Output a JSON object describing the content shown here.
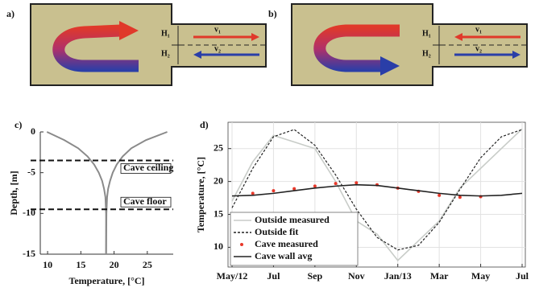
{
  "diagrams": [
    {
      "label": "a)",
      "h1": "H₁",
      "h2": "H₂",
      "v1": "v₁",
      "v2": "v₂"
    },
    {
      "label": "b)",
      "h1": "H₁",
      "h2": "H₂",
      "v1": "v₁",
      "v2": "v₂"
    }
  ],
  "chart_data": [
    {
      "type": "profile",
      "label": "c)",
      "xlabel": "Temperature, [°C]",
      "ylabel": "Depth, [m]",
      "xlim": [
        8.9,
        28.9
      ],
      "ylim": [
        -15,
        0
      ],
      "xticks": [
        10,
        15,
        20,
        25
      ],
      "yticks": [
        0,
        -5,
        -10,
        -15
      ],
      "y": [
        0,
        -1,
        -2,
        -3,
        -4,
        -5,
        -6,
        -7,
        -8,
        -10,
        -15
      ],
      "series": [
        {
          "color": "#8a8a8a",
          "x": [
            9.9,
            12.5,
            14.6,
            16.0,
            17.0,
            17.7,
            18.2,
            18.5,
            18.7,
            18.8,
            18.8
          ]
        },
        {
          "color": "#8a8a8a",
          "x": [
            28.0,
            24.8,
            22.6,
            21.3,
            20.4,
            19.8,
            19.4,
            19.1,
            18.95,
            18.85,
            18.8
          ]
        }
      ],
      "annotations": [
        {
          "text": "Cave ceiling",
          "y": -3.5
        },
        {
          "text": "Cave floor",
          "y": -9.5
        }
      ]
    },
    {
      "type": "line",
      "label": "d)",
      "ylabel": "Temperature, [°C]",
      "x": [
        "2012-05",
        "2012-06",
        "2012-07",
        "2012-08",
        "2012-09",
        "2012-10",
        "2012-11",
        "2012-12",
        "2013-01",
        "2013-02",
        "2013-03",
        "2013-04",
        "2013-05",
        "2013-06",
        "2013-07"
      ],
      "xlim": [
        "2012-05",
        "2013-07"
      ],
      "xticks": [
        {
          "value": "2012-05",
          "label": "May/12"
        },
        {
          "value": "2012-07",
          "label": "Jul"
        },
        {
          "value": "2012-09",
          "label": "Sep"
        },
        {
          "value": "2012-11",
          "label": "Nov"
        },
        {
          "value": "2013-01",
          "label": "Jan/13"
        },
        {
          "value": "2013-03",
          "label": "Mar"
        },
        {
          "value": "2013-05",
          "label": "May"
        },
        {
          "value": "2013-07",
          "label": "Jul"
        }
      ],
      "ylim": [
        7,
        29
      ],
      "yticks": [
        10,
        15,
        20,
        25
      ],
      "grid": true,
      "legend": "lower left",
      "series": [
        {
          "name": "Outside measured",
          "color": "#c8ccc8",
          "style": "line",
          "values": [
            17,
            23,
            27,
            26,
            25,
            20,
            14,
            12,
            8,
            11,
            14,
            19,
            22,
            25,
            28
          ]
        },
        {
          "name": "Outside fit",
          "color": "#222222",
          "style": "dashed",
          "values": [
            16,
            22,
            26.8,
            27.9,
            25.5,
            21,
            15.8,
            11.5,
            9.6,
            10.3,
            13.8,
            18.8,
            23.6,
            26.8,
            27.9
          ]
        },
        {
          "name": "Cave measured",
          "color": "#e8382a",
          "style": "dots",
          "values": [
            null,
            18.2,
            18.6,
            18.9,
            19.3,
            19.7,
            19.8,
            19.5,
            19.0,
            18.5,
            17.9,
            17.6,
            17.7,
            null,
            null
          ]
        },
        {
          "name": "Cave wall avg",
          "color": "#222222",
          "style": "line",
          "values": [
            17.8,
            17.9,
            18.2,
            18.6,
            19.0,
            19.3,
            19.5,
            19.4,
            19.0,
            18.6,
            18.2,
            17.9,
            17.8,
            17.9,
            18.2
          ]
        }
      ]
    }
  ]
}
